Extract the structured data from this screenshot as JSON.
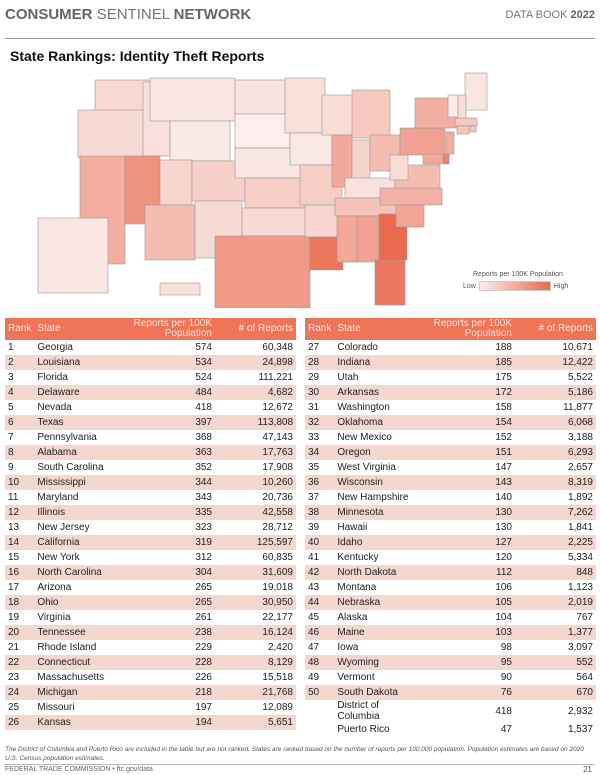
{
  "header": {
    "brand_bold1": "CONSUMER",
    "brand_mid": "SENTINEL",
    "brand_bold2": "NETWORK",
    "book": "DATA BOOK",
    "year": "2022"
  },
  "title": "State Rankings: Identity Theft Reports",
  "legend": {
    "title": "Reports per 100K Population",
    "low": "Low",
    "high": "High",
    "low_color": "#fbeeec",
    "high_color": "#ea6a50"
  },
  "columns": {
    "rank": "Rank",
    "state": "State",
    "per100k": "Reports per 100K Population",
    "reports": "# of Reports"
  },
  "rows": [
    [
      "1",
      "Georgia",
      "574",
      "60,348"
    ],
    [
      "2",
      "Louisiana",
      "534",
      "24,898"
    ],
    [
      "3",
      "Florida",
      "524",
      "111,221"
    ],
    [
      "4",
      "Delaware",
      "484",
      "4,682"
    ],
    [
      "5",
      "Nevada",
      "418",
      "12,672"
    ],
    [
      "6",
      "Texas",
      "397",
      "113,808"
    ],
    [
      "7",
      "Pennsylvania",
      "368",
      "47,143"
    ],
    [
      "8",
      "Alabama",
      "363",
      "17,763"
    ],
    [
      "9",
      "South Carolina",
      "352",
      "17,908"
    ],
    [
      "10",
      "Mississippi",
      "344",
      "10,260"
    ],
    [
      "11",
      "Maryland",
      "343",
      "20,736"
    ],
    [
      "12",
      "Illinois",
      "335",
      "42,558"
    ],
    [
      "13",
      "New Jersey",
      "323",
      "28,712"
    ],
    [
      "14",
      "California",
      "319",
      "125,597"
    ],
    [
      "15",
      "New York",
      "312",
      "60,835"
    ],
    [
      "16",
      "North Carolina",
      "304",
      "31,609"
    ],
    [
      "17",
      "Arizona",
      "265",
      "19,018"
    ],
    [
      "18",
      "Ohio",
      "265",
      "30,950"
    ],
    [
      "19",
      "Virginia",
      "261",
      "22,177"
    ],
    [
      "20",
      "Tennessee",
      "238",
      "16,124"
    ],
    [
      "21",
      "Rhode Island",
      "229",
      "2,420"
    ],
    [
      "22",
      "Connecticut",
      "228",
      "8,129"
    ],
    [
      "23",
      "Massachusetts",
      "226",
      "15,518"
    ],
    [
      "24",
      "Michigan",
      "218",
      "21,768"
    ],
    [
      "25",
      "Missouri",
      "197",
      "12,089"
    ],
    [
      "26",
      "Kansas",
      "194",
      "5,651"
    ],
    [
      "27",
      "Colorado",
      "188",
      "10,671"
    ],
    [
      "28",
      "Indiana",
      "185",
      "12,422"
    ],
    [
      "29",
      "Utah",
      "175",
      "5,522"
    ],
    [
      "30",
      "Arkansas",
      "172",
      "5,186"
    ],
    [
      "31",
      "Washington",
      "158",
      "11,877"
    ],
    [
      "32",
      "Oklahoma",
      "154",
      "6,068"
    ],
    [
      "33",
      "New Mexico",
      "152",
      "3,188"
    ],
    [
      "34",
      "Oregon",
      "151",
      "6,293"
    ],
    [
      "35",
      "West Virginia",
      "147",
      "2,657"
    ],
    [
      "36",
      "Wisconsin",
      "143",
      "8,319"
    ],
    [
      "37",
      "New Hampshire",
      "140",
      "1,892"
    ],
    [
      "38",
      "Minnesota",
      "130",
      "7,262"
    ],
    [
      "39",
      "Hawaii",
      "130",
      "1,841"
    ],
    [
      "40",
      "Idaho",
      "127",
      "2,225"
    ],
    [
      "41",
      "Kentucky",
      "120",
      "5,334"
    ],
    [
      "42",
      "North Dakota",
      "112",
      "848"
    ],
    [
      "43",
      "Montana",
      "106",
      "1,123"
    ],
    [
      "44",
      "Nebraska",
      "105",
      "2,019"
    ],
    [
      "45",
      "Alaska",
      "104",
      "767"
    ],
    [
      "46",
      "Maine",
      "103",
      "1,377"
    ],
    [
      "47",
      "Iowa",
      "98",
      "3,097"
    ],
    [
      "48",
      "Wyoming",
      "95",
      "552"
    ],
    [
      "49",
      "Vermont",
      "90",
      "564"
    ],
    [
      "50",
      "South Dakota",
      "76",
      "670"
    ],
    [
      "",
      "District of Columbia",
      "418",
      "2,932"
    ],
    [
      "",
      "Puerto Rico",
      "47",
      "1,537"
    ]
  ],
  "footnote": "The District of Columbia and Puerto Rico are included in the table but are not ranked.  States are ranked based on the number of reports per 100,000 population. Population estimates are based on 2020 U.S. Census population estimates.",
  "footer": {
    "org": "FEDERAL TRADE COMMISSION • ftc.gov/data",
    "page": "21"
  }
}
